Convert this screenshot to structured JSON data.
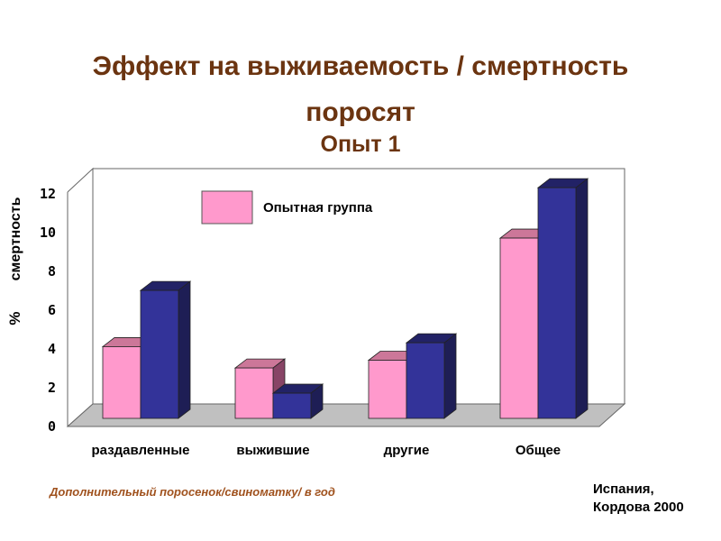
{
  "title_line1": "Эффект на выживаемость / смертность",
  "title_line2": "поросят",
  "subtitle": "Опыт 1",
  "footnote": "Дополнительный поросенок/свиноматку/ в год",
  "source_line1": "Испания,",
  "source_line2": "Кордова 2000",
  "chart_data": {
    "type": "bar",
    "title": "Эффект на выживаемость / смертность поросят",
    "ylabel": "% смертность",
    "ylabel_parts": [
      "%",
      "смертность"
    ],
    "xlabel": "",
    "ylim": [
      0,
      12
    ],
    "yticks": [
      "0",
      "2",
      "4",
      "6",
      "8",
      "10",
      "12"
    ],
    "categories": [
      "раздавленные",
      "выжившие",
      "другие",
      "Общее"
    ],
    "series": [
      {
        "name": "Опытная группа",
        "color": "#ff99cc",
        "values": [
          3.7,
          2.6,
          3.0,
          9.3
        ]
      },
      {
        "name": "",
        "color": "#333399",
        "values": [
          6.6,
          1.3,
          3.9,
          11.9
        ]
      }
    ],
    "legend": {
      "position": "top-center",
      "label": "Опытная группа"
    },
    "style": "3d"
  }
}
